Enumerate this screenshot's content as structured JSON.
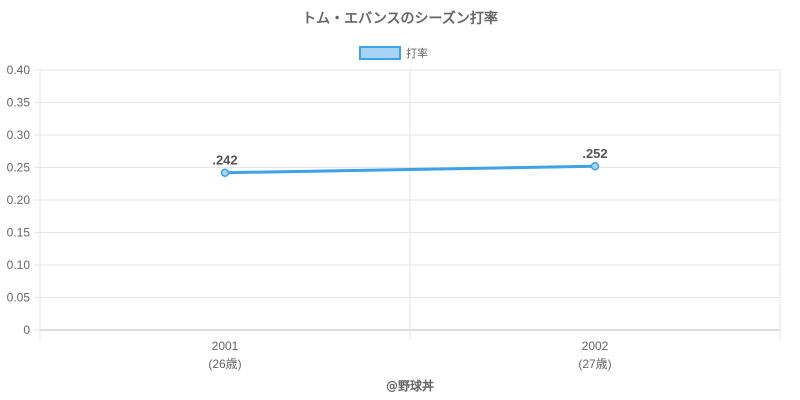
{
  "chart_data": {
    "type": "line",
    "title": "トム・エバンスのシーズン打率",
    "categories": [
      "2001",
      "2002"
    ],
    "category_sublabels": [
      "(26歳)",
      "(27歳)"
    ],
    "series": [
      {
        "name": "打率",
        "values": [
          0.242,
          0.252
        ],
        "labels": [
          ".242",
          ".252"
        ],
        "color": "#3fa2e6"
      }
    ],
    "ylim": [
      0,
      0.4
    ],
    "yticks": [
      "0",
      "0.05",
      "0.10",
      "0.15",
      "0.20",
      "0.25",
      "0.30",
      "0.35",
      "0.40"
    ],
    "grid": true,
    "legend_position": "top-center",
    "credit": "@野球丼"
  }
}
